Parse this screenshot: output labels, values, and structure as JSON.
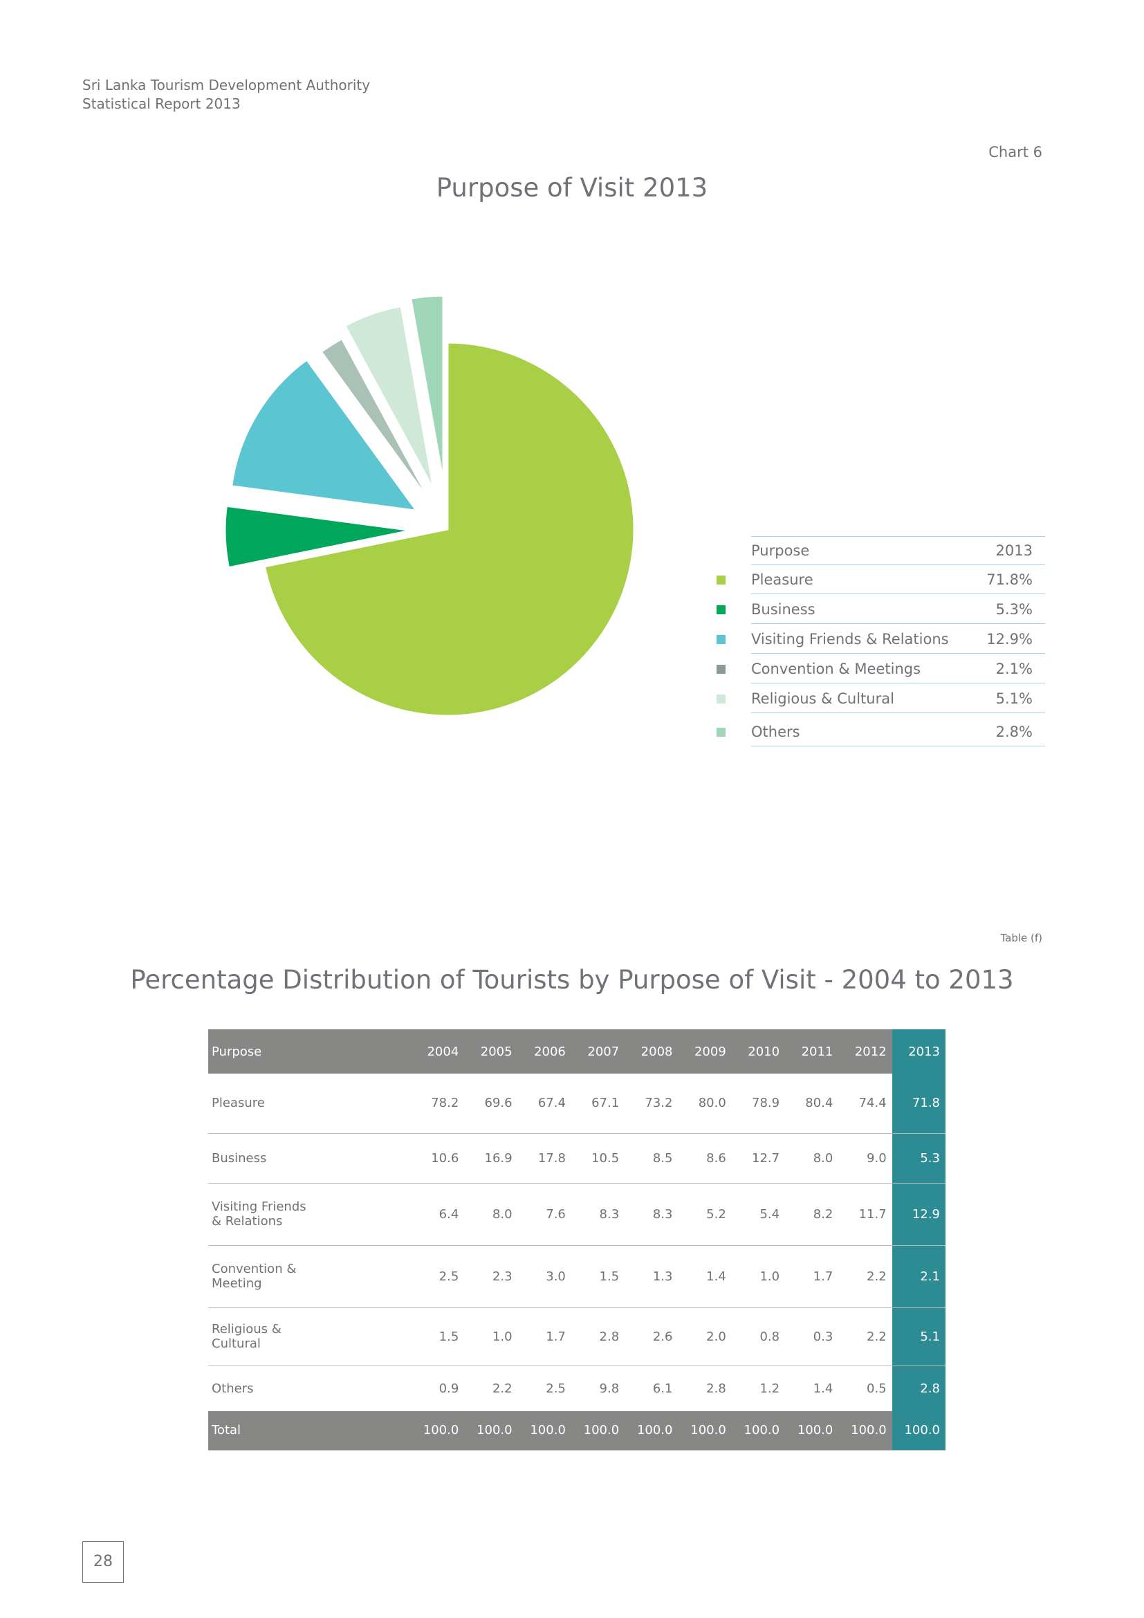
{
  "header": {
    "org": "Sri Lanka Tourism Development Authority",
    "report": "Statistical Report 2013"
  },
  "chart_label": "Chart 6",
  "chart_data": {
    "type": "pie",
    "title": "Purpose of Visit 2013",
    "categories": [
      "Pleasure",
      "Business",
      "Visiting Friends & Relations",
      "Convention & Meetings",
      "Religious & Cultural",
      "Others"
    ],
    "values": [
      71.8,
      5.3,
      12.9,
      2.1,
      5.1,
      2.8
    ],
    "colors": [
      "#a9cf46",
      "#00a75a",
      "#5bc5d1",
      "#a9c2b5",
      "#cfe8d8",
      "#9fd6b7"
    ],
    "legend_placement": "right"
  },
  "legend": {
    "header": {
      "label": "Purpose",
      "value": "2013"
    },
    "rows": [
      {
        "label": "Pleasure",
        "value": "71.8%"
      },
      {
        "label": "Business",
        "value": "5.3%"
      },
      {
        "label": "Visiting Friends & Relations",
        "value": "12.9%"
      },
      {
        "label": "Convention & Meetings",
        "value": "2.1%"
      },
      {
        "label": "Religious & Cultural",
        "value": "5.1%"
      },
      {
        "label": "Others",
        "value": "2.8%"
      }
    ],
    "swatch_colors": [
      "#a9cf46",
      "#00a75a",
      "#5bc5d1",
      "#8c9a95",
      "#cfe8d8",
      "#9fd6b7"
    ]
  },
  "table_label": "Table (f)",
  "table": {
    "title": "Percentage Distribution of Tourists by Purpose of Visit - 2004 to 2013",
    "headers": [
      "Purpose",
      "2004",
      "2005",
      "2006",
      "2007",
      "2008",
      "2009",
      "2010",
      "2011",
      "2012",
      "2013"
    ],
    "rows": [
      {
        "purpose": "Pleasure",
        "values": [
          "78.2",
          "69.6",
          "67.4",
          "67.1",
          "73.2",
          "80.0",
          "78.9",
          "80.4",
          "74.4",
          "71.8"
        ]
      },
      {
        "purpose": "Business",
        "values": [
          "10.6",
          "16.9",
          "17.8",
          "10.5",
          "8.5",
          "8.6",
          "12.7",
          "8.0",
          "9.0",
          "5.3"
        ]
      },
      {
        "purpose_line1": "Visiting Friends",
        "purpose_line2": "& Relations",
        "values": [
          "6.4",
          "8.0",
          "7.6",
          "8.3",
          "8.3",
          "5.2",
          "5.4",
          "8.2",
          "11.7",
          "12.9"
        ]
      },
      {
        "purpose_line1": "Convention &",
        "purpose_line2": "Meeting",
        "values": [
          "2.5",
          "2.3",
          "3.0",
          "1.5",
          "1.3",
          "1.4",
          "1.0",
          "1.7",
          "2.2",
          "2.1"
        ]
      },
      {
        "purpose_line1": "Religious &",
        "purpose_line2": "Cultural",
        "values": [
          "1.5",
          "1.0",
          "1.7",
          "2.8",
          "2.6",
          "2.0",
          "0.8",
          "0.3",
          "2.2",
          "5.1"
        ]
      },
      {
        "purpose": "Others",
        "values": [
          "0.9",
          "2.2",
          "2.5",
          "9.8",
          "6.1",
          "2.8",
          "1.2",
          "1.4",
          "0.5",
          "2.8"
        ]
      }
    ],
    "total": {
      "label": "Total",
      "values": [
        "100.0",
        "100.0",
        "100.0",
        "100.0",
        "100.0",
        "100.0",
        "100.0",
        "100.0",
        "100.0",
        "100.0"
      ]
    }
  },
  "page_number": "28"
}
